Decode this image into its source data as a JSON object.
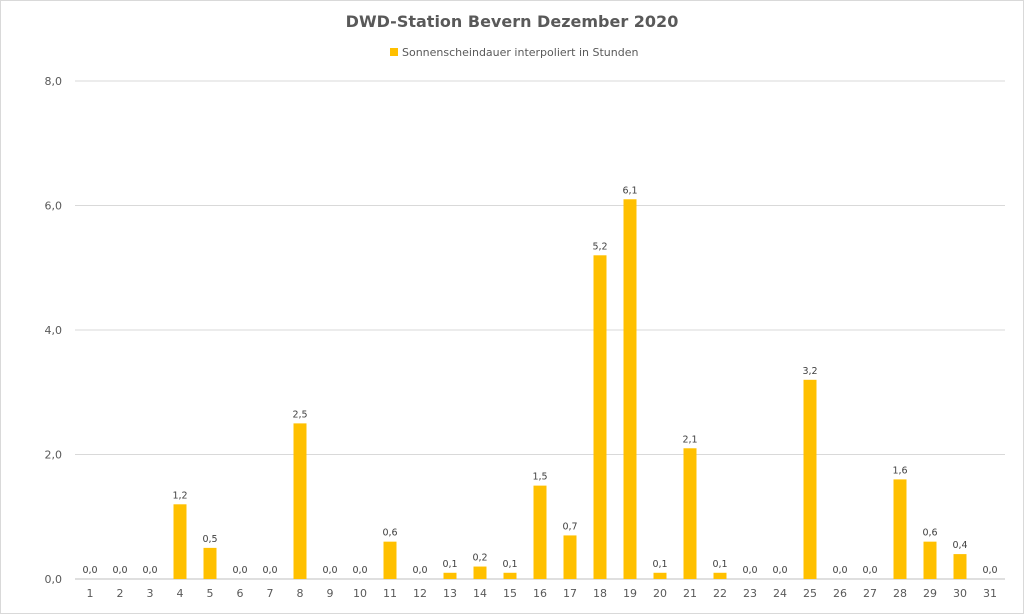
{
  "chart_data": {
    "type": "bar",
    "title": "DWD-Station  Bevern Dezember 2020",
    "xlabel": "",
    "ylabel": "",
    "ylim": [
      0,
      8
    ],
    "yticks": [
      "0,0",
      "2,0",
      "4,0",
      "6,0",
      "8,0"
    ],
    "grid": true,
    "legend_position": "top",
    "bar_color": "#FFC000",
    "categories": [
      "1",
      "2",
      "3",
      "4",
      "5",
      "6",
      "7",
      "8",
      "9",
      "10",
      "11",
      "12",
      "13",
      "14",
      "15",
      "16",
      "17",
      "18",
      "19",
      "20",
      "21",
      "22",
      "23",
      "24",
      "25",
      "26",
      "27",
      "28",
      "29",
      "30",
      "31"
    ],
    "series": [
      {
        "name": "Sonnenscheindauer interpoliert in Stunden",
        "values": [
          0,
          0,
          0,
          1.2,
          0.5,
          0,
          0,
          2.5,
          0,
          0,
          0.6,
          0,
          0.1,
          0.2,
          0.1,
          1.5,
          0.7,
          5.2,
          6.1,
          0.1,
          2.1,
          0.1,
          0,
          0,
          3.2,
          0,
          0,
          1.6,
          0.6,
          0.4,
          0
        ],
        "labels": [
          "0,0",
          "0,0",
          "0,0",
          "1,2",
          "0,5",
          "0,0",
          "0,0",
          "2,5",
          "0,0",
          "0,0",
          "0,6",
          "0,0",
          "0,1",
          "0,2",
          "0,1",
          "1,5",
          "0,7",
          "5,2",
          "6,1",
          "0,1",
          "2,1",
          "0,1",
          "0,0",
          "0,0",
          "3,2",
          "0,0",
          "0,0",
          "1,6",
          "0,6",
          "0,4",
          "0,0"
        ]
      }
    ]
  }
}
